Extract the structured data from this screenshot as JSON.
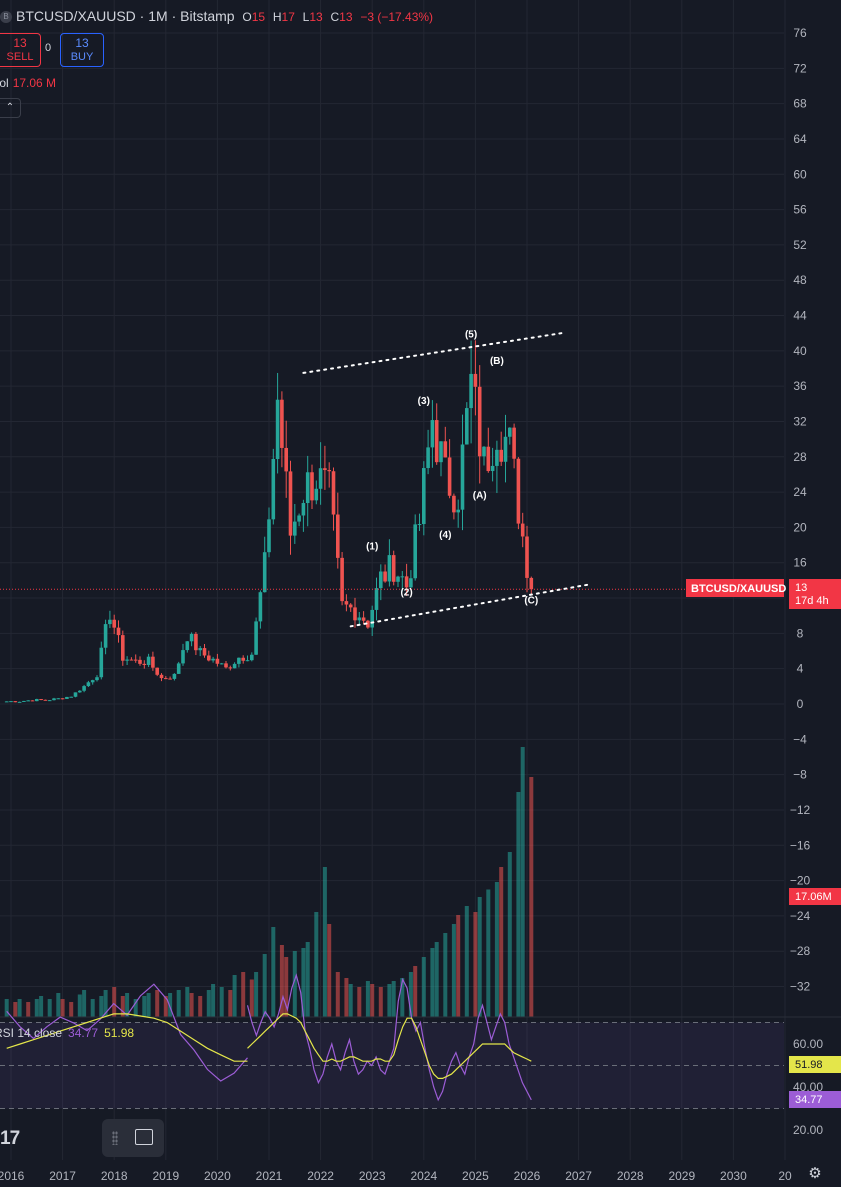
{
  "header": {
    "symbol": "BTCUSD/XAUUSD · 1M · Bitstamp",
    "o_label": "O",
    "o_value": "15",
    "h_label": "H",
    "h_value": "17",
    "l_label": "L",
    "l_value": "13",
    "c_label": "C",
    "c_value": "13",
    "change": "−3 (−17.43%)"
  },
  "trade": {
    "sell_price": "13",
    "sell_label": "SELL",
    "spread": "0",
    "buy_price": "13",
    "buy_label": "BUY"
  },
  "volume": {
    "label": "Vol",
    "value": "17.06 M"
  },
  "rsi": {
    "label": "RSI 14 close",
    "value": "34.77",
    "ma_value": "51.98"
  },
  "labels": {
    "price_tag_symbol": "BTCUSD/XAUUSD",
    "price_tag_value": "13",
    "price_tag_countdown": "17d 4h",
    "vol_tag": "17.06M",
    "rsi_ma_tag": "51.98",
    "rsi_tag": "34.77",
    "logo": "17"
  },
  "icons": {
    "screenshot": "image-icon",
    "settings": "gear-icon",
    "collapse": "chevron-up-icon",
    "grip": "drag-grip-icon"
  },
  "colors": {
    "up": "#26a69a",
    "down": "#ef5350",
    "rsi": "#9c5dd6",
    "rsi_ma": "#e4e64a",
    "price_line": "#f23645",
    "background": "#161a25"
  },
  "chart_data": {
    "type": "candlestick",
    "interval": "1M",
    "price_axis": {
      "ticks": [
        76,
        72,
        68,
        64,
        60,
        56,
        52,
        48,
        44,
        40,
        36,
        32,
        28,
        24,
        20,
        16,
        12,
        8,
        4,
        0,
        -4,
        -8,
        -12,
        -16,
        -20,
        -24,
        -28,
        -32
      ],
      "range": [
        -32,
        76
      ]
    },
    "time_axis": {
      "ticks": [
        "2016",
        "2017",
        "2018",
        "2019",
        "2020",
        "2021",
        "2022",
        "2023",
        "2024",
        "2025",
        "2026",
        "2027",
        "2028",
        "2029",
        "2030",
        "20"
      ]
    },
    "current_price": 13,
    "series_price": [
      {
        "date": "2015-12",
        "close": 0.3
      },
      {
        "date": "2016-03",
        "close": 0.32
      },
      {
        "date": "2016-06",
        "close": 0.45
      },
      {
        "date": "2016-09",
        "close": 0.45
      },
      {
        "date": "2016-12",
        "close": 0.6
      },
      {
        "date": "2017-03",
        "close": 0.9
      },
      {
        "date": "2017-06",
        "close": 2.0
      },
      {
        "date": "2017-09",
        "close": 3.4
      },
      {
        "date": "2017-12",
        "close": 10.5
      },
      {
        "date": "2018-03",
        "close": 5.3
      },
      {
        "date": "2018-06",
        "close": 4.8
      },
      {
        "date": "2018-09",
        "close": 4.8
      },
      {
        "date": "2018-12",
        "close": 2.9
      },
      {
        "date": "2019-03",
        "close": 3.2
      },
      {
        "date": "2019-06",
        "close": 7.9
      },
      {
        "date": "2019-09",
        "close": 5.8
      },
      {
        "date": "2019-12",
        "close": 5.0
      },
      {
        "date": "2020-03",
        "close": 4.0
      },
      {
        "date": "2020-06",
        "close": 5.3
      },
      {
        "date": "2020-09",
        "close": 5.7
      },
      {
        "date": "2020-12",
        "close": 15.5
      },
      {
        "date": "2021-03",
        "close": 34.5
      },
      {
        "date": "2021-06",
        "close": 19.3
      },
      {
        "date": "2021-09",
        "close": 24.3
      },
      {
        "date": "2021-12",
        "close": 25.8
      },
      {
        "date": "2022-03",
        "close": 23.7
      },
      {
        "date": "2022-06",
        "close": 11.0
      },
      {
        "date": "2022-09",
        "close": 10.7
      },
      {
        "date": "2022-12",
        "close": 9.3
      },
      {
        "date": "2023-03",
        "close": 14.2
      },
      {
        "date": "2023-06",
        "close": 15.7
      },
      {
        "date": "2023-09",
        "close": 13.4
      },
      {
        "date": "2023-12",
        "close": 20.6
      },
      {
        "date": "2024-03",
        "close": 32.4
      },
      {
        "date": "2024-06",
        "close": 25.5
      },
      {
        "date": "2024-09",
        "close": 24.0
      },
      {
        "date": "2024-12",
        "close": 36.0
      },
      {
        "date": "2025-03",
        "close": 27.0
      },
      {
        "date": "2025-06",
        "close": 32.0
      },
      {
        "date": "2025-09",
        "close": 29.0
      },
      {
        "date": "2025-12",
        "close": 19.0
      },
      {
        "date": "2026-02",
        "close": 13.0
      }
    ],
    "wave_labels": [
      {
        "text": "(1)",
        "date": "2023-01",
        "price": 17.5
      },
      {
        "text": "(2)",
        "date": "2023-09",
        "price": 12.3
      },
      {
        "text": "(3)",
        "date": "2024-01",
        "price": 34.0
      },
      {
        "text": "(4)",
        "date": "2024-06",
        "price": 18.8
      },
      {
        "text": "(5)",
        "date": "2024-12",
        "price": 41.5
      },
      {
        "text": "(A)",
        "date": "2025-02",
        "price": 23.3
      },
      {
        "text": "(B)",
        "date": "2025-06",
        "price": 38.5
      },
      {
        "text": "(C)",
        "date": "2026-02",
        "price": 11.4
      }
    ],
    "trendlines": [
      {
        "from": {
          "date": "2021-09",
          "price": 37.5
        },
        "to": {
          "date": "2026-09",
          "price": 42.0
        }
      },
      {
        "from": {
          "date": "2022-08",
          "price": 8.8
        },
        "to": {
          "date": "2027-03",
          "price": 13.5
        }
      }
    ],
    "volume": {
      "last": "17.06M",
      "relative_series": [
        0.12,
        0.1,
        0.12,
        0.1,
        0.12,
        0.14,
        0.12,
        0.16,
        0.12,
        0.1,
        0.15,
        0.18,
        0.12,
        0.14,
        0.18,
        0.2,
        0.14,
        0.16,
        0.12,
        0.14,
        0.16,
        0.18,
        0.14,
        0.16,
        0.18,
        0.2,
        0.16,
        0.14,
        0.18,
        0.22,
        0.2,
        0.18,
        0.28,
        0.3,
        0.25,
        0.3,
        0.42,
        0.6,
        0.48,
        0.4,
        0.44,
        0.46,
        0.5,
        0.7,
        1.0,
        0.62,
        0.3,
        0.26,
        0.22,
        0.2,
        0.24,
        0.22,
        0.2,
        0.22,
        0.24,
        0.26,
        0.3,
        0.34,
        0.4,
        0.46,
        0.5,
        0.56,
        0.62,
        0.68,
        0.74,
        0.7,
        0.8,
        0.85,
        0.9,
        1.0,
        1.1,
        1.5,
        1.8,
        1.6
      ]
    },
    "rsi": {
      "length": 14,
      "source": "close",
      "value": 34.77,
      "ma": 51.98,
      "bands": [
        70,
        50,
        30
      ],
      "ticks": [
        "60.00",
        "40.00",
        "20.00"
      ],
      "rsi_series": [
        78,
        70,
        64,
        70,
        75,
        72,
        68,
        74,
        82,
        76,
        86,
        92,
        84,
        66,
        58,
        48,
        42,
        46,
        54,
        60,
        52,
        48,
        56,
        62,
        52,
        46,
        48,
        52,
        50,
        54,
        48,
        46,
        52,
        58,
        80,
        90,
        86,
        72,
        66,
        70,
        58,
        48,
        40,
        34,
        38,
        46,
        52,
        56,
        50,
        46,
        54,
        60,
        72,
        78,
        70,
        62,
        68,
        74,
        70,
        60,
        54,
        48,
        42,
        38,
        34
      ],
      "ma_series": [
        58,
        60,
        62,
        64,
        66,
        68,
        70,
        72,
        74,
        74,
        73,
        72,
        70,
        66,
        62,
        58,
        55,
        52,
        52,
        53,
        52,
        52,
        53,
        54,
        54,
        53,
        52,
        52,
        52,
        53,
        53,
        52,
        52,
        55,
        62,
        68,
        72,
        72,
        68,
        62,
        56,
        50,
        46,
        44,
        44,
        45,
        46,
        48,
        50,
        52,
        54,
        56,
        58,
        60,
        60,
        60,
        60,
        60,
        60,
        58,
        56,
        55,
        54,
        53,
        52
      ]
    }
  }
}
